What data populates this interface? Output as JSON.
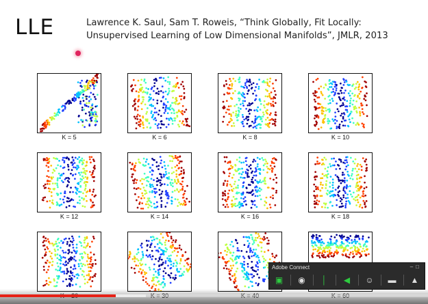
{
  "slide": {
    "title": "LLE",
    "citation_line1": "Lawrence K. Saul, Sam T. Roweis, “Think Globally, Fit Locally:",
    "citation_line2": "Unsupervised Learning of Low Dimensional Manifolds”, JMLR, 2013"
  },
  "panels": [
    {
      "label": "K = 5"
    },
    {
      "label": "K = 6"
    },
    {
      "label": "K = 8"
    },
    {
      "label": "K = 10"
    },
    {
      "label": "K = 12"
    },
    {
      "label": "K = 14"
    },
    {
      "label": "K = 16"
    },
    {
      "label": "K = 18"
    },
    {
      "label": "K = 20"
    },
    {
      "label": "K = 30"
    },
    {
      "label": "K = 40"
    },
    {
      "label": "K = 60"
    }
  ],
  "colors": {
    "colormap": [
      "#00008f",
      "#2040ff",
      "#00c0ff",
      "#40ffc0",
      "#c0ff40",
      "#ffc000",
      "#ff4000",
      "#a00000"
    ],
    "pointer": "#e0245e",
    "progress_played": "#e62117"
  },
  "adobe_connect": {
    "title": "Adobe Connect",
    "buttons": [
      {
        "icon": "share-screen-icon",
        "color": "#2ecc40"
      },
      {
        "icon": "webcam-icon",
        "color": "#dddddd"
      },
      {
        "icon": "microphone-icon",
        "color": "#2ecc40"
      },
      {
        "icon": "speaker-icon",
        "color": "#2ecc40"
      },
      {
        "icon": "attendees-icon",
        "color": "#dddddd"
      },
      {
        "icon": "chat-icon",
        "color": "#dddddd"
      },
      {
        "icon": "notification-bell-icon",
        "color": "#dddddd"
      }
    ]
  },
  "video_player": {
    "progress_fraction": 0.27,
    "buffered_fraction": 0.34
  }
}
